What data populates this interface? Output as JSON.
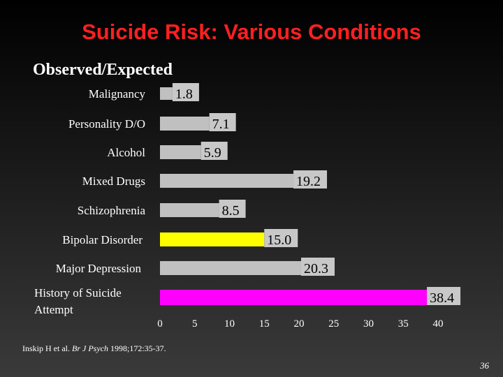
{
  "slide": {
    "title": "Suicide Risk: Various Conditions",
    "page_number": "36"
  },
  "citation": {
    "authors": "Inskip H et al.",
    "journal": "Br J Psych",
    "details": "1998;172:35-37."
  },
  "chart_data": {
    "type": "bar",
    "orientation": "horizontal",
    "title": "Observed/Expected",
    "categories": [
      "Malignancy",
      "Personality D/O",
      "Alcohol",
      "Mixed Drugs",
      "Schizophrenia",
      "Bipolar Disorder",
      "Major Depression",
      "History of Suicide Attempt"
    ],
    "values": [
      1.8,
      7.1,
      5.9,
      19.2,
      8.5,
      15.0,
      20.3,
      38.4
    ],
    "value_labels": [
      "1.8",
      "7.1",
      "5.9",
      "19.2",
      "8.5",
      "15.0",
      "20.3",
      "38.4"
    ],
    "colors": [
      "#c0c0c0",
      "#c0c0c0",
      "#c0c0c0",
      "#c0c0c0",
      "#c0c0c0",
      "#ffff00",
      "#c0c0c0",
      "#ff00ff"
    ],
    "xlim": [
      0,
      40
    ],
    "x_ticks": [
      0,
      5,
      10,
      15,
      20,
      25,
      30,
      35,
      40
    ],
    "grid": false
  }
}
